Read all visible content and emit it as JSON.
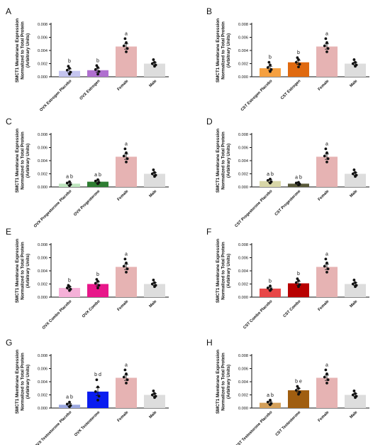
{
  "colors": {
    "female": "#E6B3B3",
    "male": "#DDDDDD",
    "axis": "#111111",
    "points": "#111111"
  },
  "chart_data": [
    {
      "panel": "A",
      "type": "bar",
      "ylabel": [
        "SMCT1 Membrane Expression",
        "Normalized to Total Protein",
        "(Arbitrary Units)"
      ],
      "ylim": [
        0,
        0.008
      ],
      "yticks": [
        "0.000",
        "0.002",
        "0.004",
        "0.006",
        "0.008"
      ],
      "bars": [
        {
          "category": "OVX Estrogen Placebo",
          "value": 0.0009,
          "err": 0.0003,
          "color": "#C5C5F0",
          "sig": "b",
          "points": [
            0.0004,
            0.0007,
            0.001,
            0.0013,
            0.0016
          ]
        },
        {
          "category": "OVX Estrogen",
          "value": 0.001,
          "err": 0.0003,
          "color": "#B070D0",
          "sig": "b",
          "points": [
            0.0004,
            0.0008,
            0.0011,
            0.0014,
            0.0017
          ]
        },
        {
          "category": "Female",
          "value": 0.0046,
          "err": 0.0004,
          "color": "#E6B3B3",
          "sig": "a",
          "points": [
            0.0038,
            0.0043,
            0.0047,
            0.0052,
            0.0058
          ]
        },
        {
          "category": "Male",
          "value": 0.002,
          "err": 0.0002,
          "color": "#DDDDDD",
          "sig": "",
          "points": [
            0.0016,
            0.0018,
            0.002,
            0.0022,
            0.0026
          ]
        }
      ]
    },
    {
      "panel": "B",
      "type": "bar",
      "ylabel": [
        "SMCT1 Membrane Expression",
        "Normalized to Total Protein",
        "(Arbitrary Units)"
      ],
      "ylim": [
        0,
        0.008
      ],
      "yticks": [
        "0.000",
        "0.002",
        "0.004",
        "0.006",
        "0.008"
      ],
      "bars": [
        {
          "category": "CST Estrogen Placebo",
          "value": 0.0013,
          "err": 0.0003,
          "color": "#F5A040",
          "sig": "b",
          "points": [
            0.0008,
            0.0011,
            0.0014,
            0.0018,
            0.0022
          ]
        },
        {
          "category": "CST Estrogen",
          "value": 0.0022,
          "err": 0.0003,
          "color": "#E06A10",
          "sig": "b",
          "points": [
            0.0015,
            0.0019,
            0.0022,
            0.0026,
            0.0029
          ]
        },
        {
          "category": "Female",
          "value": 0.0046,
          "err": 0.0004,
          "color": "#E6B3B3",
          "sig": "a",
          "points": [
            0.0038,
            0.0043,
            0.0047,
            0.0052,
            0.0058
          ]
        },
        {
          "category": "Male",
          "value": 0.002,
          "err": 0.0002,
          "color": "#DDDDDD",
          "sig": "",
          "points": [
            0.0016,
            0.0018,
            0.002,
            0.0022,
            0.0026
          ]
        }
      ]
    },
    {
      "panel": "C",
      "type": "bar",
      "ylabel": [
        "SMCT1 Membrane Expression",
        "Normalized to Total Protein",
        "(Arbitrary Units)"
      ],
      "ylim": [
        0,
        0.008
      ],
      "yticks": [
        "0.000",
        "0.002",
        "0.004",
        "0.006",
        "0.008"
      ],
      "bars": [
        {
          "category": "OVX Progesterone Placebo",
          "value": 0.0005,
          "err": 0.0002,
          "color": "#BFE6BF",
          "sig": "a b",
          "points": [
            0.0002,
            0.0004,
            0.0006,
            0.0008
          ]
        },
        {
          "category": "OVX Progesterone",
          "value": 0.0008,
          "err": 0.0002,
          "color": "#2E7D32",
          "sig": "a b",
          "points": [
            0.0005,
            0.0007,
            0.0009,
            0.0011
          ]
        },
        {
          "category": "Female",
          "value": 0.0046,
          "err": 0.0004,
          "color": "#E6B3B3",
          "sig": "a",
          "points": [
            0.0038,
            0.0043,
            0.0047,
            0.0052,
            0.0058
          ]
        },
        {
          "category": "Male",
          "value": 0.002,
          "err": 0.0002,
          "color": "#DDDDDD",
          "sig": "",
          "points": [
            0.0016,
            0.0018,
            0.002,
            0.0022,
            0.0026
          ]
        }
      ]
    },
    {
      "panel": "D",
      "type": "bar",
      "ylabel": [
        "SMCT1 Membrane Expression",
        "Normalized to Total Protein",
        "(Arbitrary Units)"
      ],
      "ylim": [
        0,
        0.008
      ],
      "yticks": [
        "0.000",
        "0.002",
        "0.004",
        "0.006",
        "0.008"
      ],
      "bars": [
        {
          "category": "CST Progesterone Placebo",
          "value": 0.0009,
          "err": 0.0002,
          "color": "#D8D6A8",
          "sig": "a b",
          "points": [
            0.0006,
            0.0008,
            0.001,
            0.0012
          ]
        },
        {
          "category": "CST Progesterone",
          "value": 0.0005,
          "err": 0.0001,
          "color": "#5A5A3A",
          "sig": "a b",
          "points": [
            0.0003,
            0.0004,
            0.0006,
            0.0007
          ]
        },
        {
          "category": "Female",
          "value": 0.0046,
          "err": 0.0004,
          "color": "#E6B3B3",
          "sig": "a",
          "points": [
            0.0038,
            0.0043,
            0.0047,
            0.0052,
            0.0058
          ]
        },
        {
          "category": "Male",
          "value": 0.002,
          "err": 0.0002,
          "color": "#DDDDDD",
          "sig": "",
          "points": [
            0.0016,
            0.0018,
            0.002,
            0.0022,
            0.0026
          ]
        }
      ]
    },
    {
      "panel": "E",
      "type": "bar",
      "ylabel": [
        "SMCT1 Membrane Expression",
        "Normalized to Total Protein",
        "(Arbitrary Units)"
      ],
      "ylim": [
        0,
        0.008
      ],
      "yticks": [
        "0.000",
        "0.002",
        "0.004",
        "0.006",
        "0.008"
      ],
      "bars": [
        {
          "category": "OVX Combo Placebo",
          "value": 0.0014,
          "err": 0.0002,
          "color": "#F5B0D8",
          "sig": "b",
          "points": [
            0.001,
            0.0012,
            0.0014,
            0.0016,
            0.0018
          ]
        },
        {
          "category": "OVX Combo",
          "value": 0.002,
          "err": 0.0003,
          "color": "#E8178A",
          "sig": "b",
          "points": [
            0.0014,
            0.0018,
            0.0021,
            0.0024,
            0.0027
          ]
        },
        {
          "category": "Female",
          "value": 0.0046,
          "err": 0.0004,
          "color": "#E6B3B3",
          "sig": "a",
          "points": [
            0.0038,
            0.0043,
            0.0047,
            0.0052,
            0.0058
          ]
        },
        {
          "category": "Male",
          "value": 0.002,
          "err": 0.0002,
          "color": "#DDDDDD",
          "sig": "",
          "points": [
            0.0016,
            0.0018,
            0.002,
            0.0022,
            0.0026
          ]
        }
      ]
    },
    {
      "panel": "F",
      "type": "bar",
      "ylabel": [
        "SMCT1 Membrane Expression",
        "Normalized to Total Protein",
        "(Arbitrary Units)"
      ],
      "ylim": [
        0,
        0.008
      ],
      "yticks": [
        "0.000",
        "0.002",
        "0.004",
        "0.006",
        "0.008"
      ],
      "bars": [
        {
          "category": "CST Combo Placebo",
          "value": 0.0013,
          "err": 0.0002,
          "color": "#E84848",
          "sig": "b",
          "points": [
            0.001,
            0.0012,
            0.0014,
            0.0017
          ]
        },
        {
          "category": "CST Combo",
          "value": 0.0021,
          "err": 0.0003,
          "color": "#B80000",
          "sig": "b",
          "points": [
            0.0016,
            0.0019,
            0.0022,
            0.0025,
            0.0028
          ]
        },
        {
          "category": "Female",
          "value": 0.0046,
          "err": 0.0004,
          "color": "#E6B3B3",
          "sig": "a",
          "points": [
            0.0038,
            0.0043,
            0.0047,
            0.0052,
            0.0058
          ]
        },
        {
          "category": "Male",
          "value": 0.002,
          "err": 0.0002,
          "color": "#DDDDDD",
          "sig": "",
          "points": [
            0.0016,
            0.0018,
            0.002,
            0.0022,
            0.0026
          ]
        }
      ]
    },
    {
      "panel": "G",
      "type": "bar",
      "ylabel": [
        "SMCT1 Membrane Expression",
        "Normalized to Total Protein",
        "(Arbitrary Units)"
      ],
      "ylim": [
        0,
        0.008
      ],
      "yticks": [
        "0.000",
        "0.002",
        "0.004",
        "0.006",
        "0.008"
      ],
      "bars": [
        {
          "category": "OVX Testosterone Placebo",
          "value": 0.0005,
          "err": 0.0002,
          "color": "#9BA8E0",
          "sig": "a b",
          "points": [
            0.0002,
            0.0004,
            0.0006,
            0.0009
          ]
        },
        {
          "category": "OVX Testosterone",
          "value": 0.0025,
          "err": 0.0006,
          "color": "#0A1CF0",
          "sig": "b d",
          "points": [
            0.0012,
            0.0018,
            0.0025,
            0.0032,
            0.0043
          ]
        },
        {
          "category": "Female",
          "value": 0.0046,
          "err": 0.0004,
          "color": "#E6B3B3",
          "sig": "a",
          "points": [
            0.0038,
            0.0043,
            0.0047,
            0.0052,
            0.0058
          ]
        },
        {
          "category": "Male",
          "value": 0.002,
          "err": 0.0002,
          "color": "#DDDDDD",
          "sig": "",
          "points": [
            0.0016,
            0.0018,
            0.002,
            0.0022,
            0.0026
          ]
        }
      ]
    },
    {
      "panel": "H",
      "type": "bar",
      "ylabel": [
        "SMCT1 Membrane Expression",
        "Normalized to Total Protein",
        "(Arbitrary Units)"
      ],
      "ylim": [
        0,
        0.008
      ],
      "yticks": [
        "0.000",
        "0.002",
        "0.004",
        "0.006",
        "0.008"
      ],
      "bars": [
        {
          "category": "CST Testosterone Placebo",
          "value": 0.0008,
          "err": 0.0002,
          "color": "#D4A05A",
          "sig": "a b",
          "points": [
            0.0005,
            0.0007,
            0.0009,
            0.0012
          ]
        },
        {
          "category": "CST Testosterone",
          "value": 0.0027,
          "err": 0.0003,
          "color": "#A05E10",
          "sig": "b e",
          "points": [
            0.0021,
            0.0024,
            0.0027,
            0.003,
            0.0033
          ]
        },
        {
          "category": "Female",
          "value": 0.0046,
          "err": 0.0004,
          "color": "#E6B3B3",
          "sig": "a",
          "points": [
            0.0038,
            0.0043,
            0.0047,
            0.0052,
            0.0058
          ]
        },
        {
          "category": "Male",
          "value": 0.002,
          "err": 0.0002,
          "color": "#DDDDDD",
          "sig": "",
          "points": [
            0.0016,
            0.0018,
            0.002,
            0.0022,
            0.0026
          ]
        }
      ]
    }
  ]
}
